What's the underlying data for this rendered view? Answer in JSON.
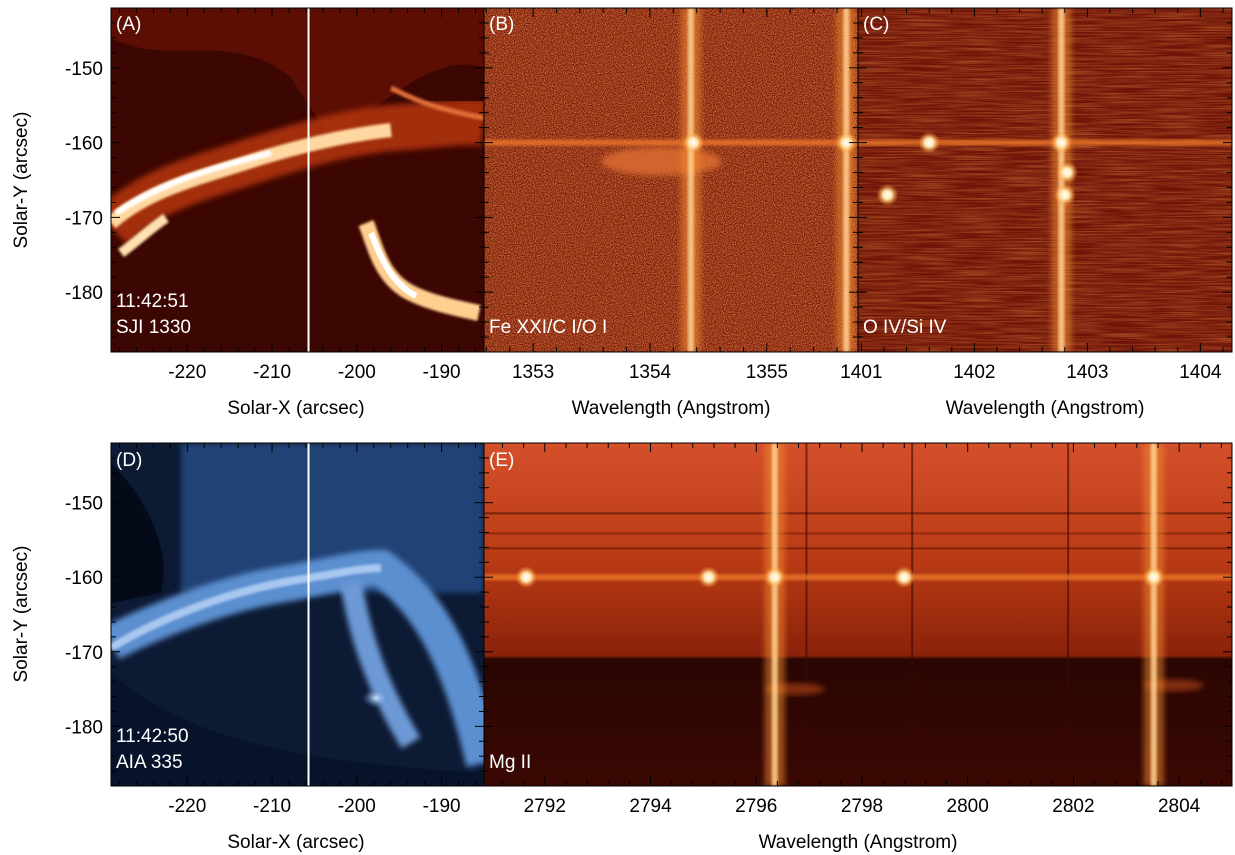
{
  "figure": {
    "panels": [
      {
        "letter": "(A)",
        "kind": "image",
        "colormap": "red",
        "time": "11:42:51",
        "instrument": "SJI 1330",
        "xlabel": "Solar-X (arcsec)",
        "ylabel": "Solar-Y (arcsec)",
        "xlim": [
          -229,
          -185
        ],
        "ylim": [
          -188,
          -142
        ],
        "xticks": [
          -220,
          -210,
          -200,
          -190
        ],
        "yticks": [
          -150,
          -160,
          -170,
          -180
        ],
        "slit_x": -205.7
      },
      {
        "letter": "(B)",
        "kind": "spectrum",
        "colormap": "red",
        "line_label": "Fe XXI/C I/O I",
        "xlabel": "Wavelength (Angstrom)",
        "xlim": [
          1352.58,
          1355.78
        ],
        "ylim": [
          -188,
          -142
        ],
        "xticks": [
          1353,
          1354,
          1355
        ],
        "vertical_lines": [
          1354.35,
          1355.68
        ],
        "bright_row_y": -160,
        "blobs": [
          [
            1354.37,
            -160
          ],
          [
            1355.68,
            -160
          ]
        ]
      },
      {
        "letter": "(C)",
        "kind": "spectrum",
        "colormap": "red",
        "line_label": "O IV/Si IV",
        "xlabel": "Wavelength (Angstrom)",
        "xlim": [
          1400.97,
          1404.28
        ],
        "ylim": [
          -188,
          -142
        ],
        "xticks": [
          1401,
          1402,
          1403,
          1404
        ],
        "vertical_lines": [
          1402.77
        ],
        "bright_row_y": -160,
        "blobs": [
          [
            1402.77,
            -160
          ],
          [
            1401.6,
            -160
          ],
          [
            1402.82,
            -164
          ],
          [
            1402.8,
            -167
          ],
          [
            1401.23,
            -167
          ]
        ]
      },
      {
        "letter": "(D)",
        "kind": "image",
        "colormap": "blue",
        "time": "11:42:50",
        "instrument": "AIA 335",
        "xlabel": "Solar-X (arcsec)",
        "ylabel": "Solar-Y (arcsec)",
        "xlim": [
          -229,
          -185
        ],
        "ylim": [
          -188,
          -142
        ],
        "xticks": [
          -220,
          -210,
          -200,
          -190
        ],
        "yticks": [
          -150,
          -160,
          -170,
          -180
        ],
        "slit_x": -205.7
      },
      {
        "letter": "(E)",
        "kind": "spectrum",
        "colormap": "red",
        "line_label": "Mg II",
        "xlabel": "Wavelength (Angstrom)",
        "xlim": [
          2790.85,
          2805
        ],
        "ylim": [
          -188,
          -142
        ],
        "xticks": [
          2792,
          2794,
          2796,
          2798,
          2800,
          2802,
          2804
        ],
        "vertical_lines": [
          2796.35,
          2803.52
        ],
        "bright_row_y": -160,
        "blobs": [
          [
            2791.65,
            -160
          ],
          [
            2795.1,
            -160
          ],
          [
            2796.35,
            -160
          ],
          [
            2798.8,
            -160
          ],
          [
            2803.52,
            -160
          ]
        ]
      }
    ]
  },
  "chart_data": [
    {
      "type": "heatmap",
      "panel": "(A)",
      "title": "",
      "annotations": [
        "11:42:51",
        "SJI 1330"
      ],
      "xlabel": "Solar-X (arcsec)",
      "ylabel": "Solar-Y (arcsec)",
      "xlim": [
        -229,
        -185
      ],
      "ylim": [
        -188,
        -142
      ],
      "x_tick_labels": [
        "-220",
        "-210",
        "-200",
        "-190"
      ],
      "y_tick_labels": [
        "-150",
        "-160",
        "-170",
        "-180"
      ],
      "slit_x": -205.7
    },
    {
      "type": "heatmap",
      "panel": "(B)",
      "annotations": [
        "Fe XXI/C I/O I"
      ],
      "xlabel": "Wavelength (Angstrom)",
      "xlim": [
        1352.58,
        1355.78
      ],
      "ylim": [
        -188,
        -142
      ],
      "x_tick_labels": [
        "1353",
        "1354",
        "1355"
      ]
    },
    {
      "type": "heatmap",
      "panel": "(C)",
      "annotations": [
        "O IV/Si IV"
      ],
      "xlabel": "Wavelength (Angstrom)",
      "xlim": [
        1400.97,
        1404.28
      ],
      "ylim": [
        -188,
        -142
      ],
      "x_tick_labels": [
        "1401",
        "1402",
        "1403",
        "1404"
      ]
    },
    {
      "type": "heatmap",
      "panel": "(D)",
      "annotations": [
        "11:42:50",
        "AIA 335"
      ],
      "xlabel": "Solar-X (arcsec)",
      "ylabel": "Solar-Y (arcsec)",
      "xlim": [
        -229,
        -185
      ],
      "ylim": [
        -188,
        -142
      ],
      "x_tick_labels": [
        "-220",
        "-210",
        "-200",
        "-190"
      ],
      "y_tick_labels": [
        "-150",
        "-160",
        "-170",
        "-180"
      ],
      "slit_x": -205.7
    },
    {
      "type": "heatmap",
      "panel": "(E)",
      "annotations": [
        "Mg II"
      ],
      "xlabel": "Wavelength (Angstrom)",
      "xlim": [
        2790.85,
        2805
      ],
      "ylim": [
        -188,
        -142
      ],
      "x_tick_labels": [
        "2792",
        "2794",
        "2796",
        "2798",
        "2800",
        "2802",
        "2804"
      ]
    }
  ]
}
